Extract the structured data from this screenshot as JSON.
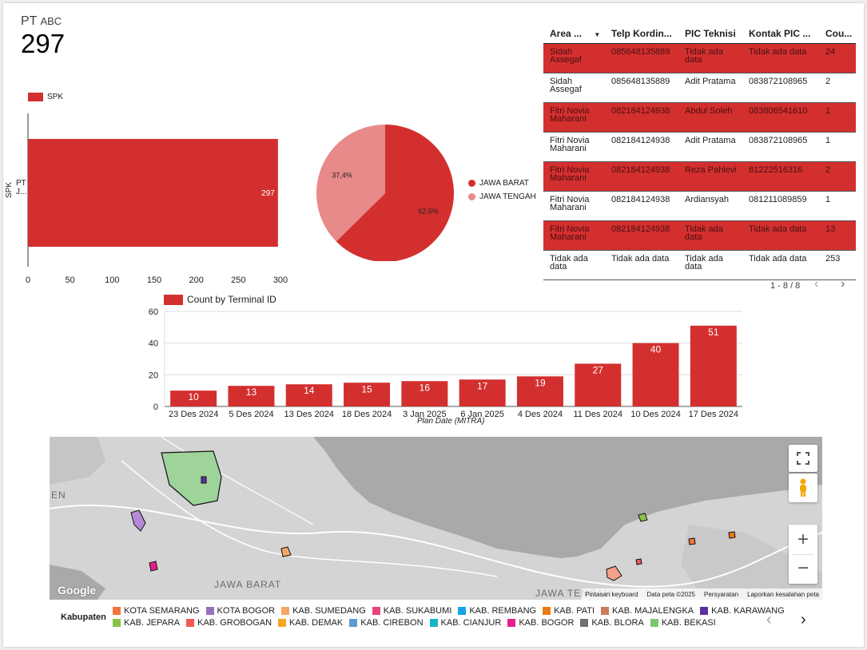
{
  "scorecard": {
    "label_main": "PT",
    "label_small": "ABC",
    "value": "297"
  },
  "spk_chart": {
    "legend": "SPK",
    "yaxis_label": "SPK",
    "category_label": "PT J...",
    "ticks": [
      "0",
      "50",
      "100",
      "150",
      "200",
      "250",
      "300"
    ]
  },
  "pie": {
    "legend": [
      "JAWA BARAT",
      "JAWA TENGAH"
    ]
  },
  "table": {
    "headers": [
      "Area ...",
      "Telp Kordin...",
      "PIC Teknisi",
      "Kontak PIC ...",
      "Cou..."
    ],
    "sort_icon": "sort-down-icon",
    "rows": [
      [
        "Sidah Assegaf",
        "085648135889",
        "Tidak ada data",
        "Tidak ada data",
        "24"
      ],
      [
        "Sidah Assegaf",
        "085648135889",
        "Adit Pratama",
        "083872108965",
        "2"
      ],
      [
        "Fitri Novia Maharani",
        "082184124938",
        "Abdul Soleh",
        "083806541610",
        "1"
      ],
      [
        "Fitri Novia Maharani",
        "082184124938",
        "Adit Pratama",
        "083872108965",
        "1"
      ],
      [
        "Fitri Novia Maharani",
        "082184124938",
        "Reza Pahlevi",
        "81222516316",
        "2"
      ],
      [
        "Fitri Novia Maharani",
        "082184124938",
        "Ardiansyah",
        "081211089859",
        "1"
      ],
      [
        "Fitri Novia Maharani",
        "082184124938",
        "Tidak ada data",
        "Tidak ada data",
        "13"
      ],
      [
        "Tidak ada data",
        "Tidak ada data",
        "Tidak ada data",
        "Tidak ada data",
        "253"
      ]
    ],
    "pager": "1 - 8 / 8",
    "prev": "‹",
    "next": "›"
  },
  "bar_chart": {
    "legend": "Count by Terminal ID",
    "xlabel": "Plan Date (MITRA)",
    "yticks": [
      "60",
      "40",
      "20",
      "0"
    ]
  },
  "chart_data": [
    {
      "type": "bar",
      "orientation": "horizontal",
      "categories": [
        "PT J..."
      ],
      "series": [
        {
          "name": "SPK",
          "values": [
            297
          ]
        }
      ],
      "ylabel": "SPK",
      "xlim": [
        0,
        300
      ],
      "data_labels": [
        "297"
      ]
    },
    {
      "type": "pie",
      "categories": [
        "JAWA BARAT",
        "JAWA TENGAH"
      ],
      "values": [
        62.6,
        37.4
      ],
      "labels": [
        "62,6%",
        "37,4%"
      ]
    },
    {
      "type": "bar",
      "categories": [
        "23 Des 2024",
        "5 Des 2024",
        "13 Des 2024",
        "18 Des 2024",
        "3 Jan 2025",
        "6 Jan 2025",
        "4 Des 2024",
        "11 Des 2024",
        "10 Des 2024",
        "17 Des 2024"
      ],
      "series": [
        {
          "name": "Count by Terminal ID",
          "values": [
            10,
            13,
            14,
            15,
            16,
            17,
            19,
            27,
            40,
            51
          ]
        }
      ],
      "xlabel": "Plan Date (MITRA)",
      "ylim": [
        0,
        60
      ],
      "grid": true,
      "legend": "top-left"
    }
  ],
  "colors": {
    "primary_red": "#d32f2f",
    "light_red": "#e88a8a",
    "map_land": "#d4d4d4",
    "map_sea": "#a9a9a9"
  },
  "map": {
    "labels": [
      "EN",
      "JAWA BARAT",
      "JAWA TENGAH"
    ],
    "google_logo": "Google",
    "attribution": [
      "Pintasan keyboard",
      "Data peta ©2025",
      "Persyaratan",
      "Laporkan kesalahan peta"
    ],
    "icons": [
      "fullscreen-icon",
      "pegman-icon"
    ],
    "zoom_in": "+",
    "zoom_out": "−"
  },
  "kabupaten": {
    "title": "Kabupaten",
    "items_row1": [
      {
        "label": "KOTA SEMARANG",
        "color": "#f4753b"
      },
      {
        "label": "KOTA BOGOR",
        "color": "#9b6fbf"
      },
      {
        "label": "KAB. SUMEDANG",
        "color": "#f5a663"
      },
      {
        "label": "KAB. SUKABUMI",
        "color": "#e8457c"
      },
      {
        "label": "KAB. REMBANG",
        "color": "#1aa3e8"
      },
      {
        "label": "KAB. PATI",
        "color": "#f07a12"
      },
      {
        "label": "KAB. MAJALENGKA",
        "color": "#cc7a5a"
      },
      {
        "label": "KAB. KARAWANG",
        "color": "#5a2ea6"
      }
    ],
    "items_row2": [
      {
        "label": "KAB. JEPARA",
        "color": "#8bc34a"
      },
      {
        "label": "KAB. GROBOGAN",
        "color": "#ef5b5b"
      },
      {
        "label": "KAB. DEMAK",
        "color": "#f5a623"
      },
      {
        "label": "KAB. CIREBON",
        "color": "#5b9bd5"
      },
      {
        "label": "KAB. CIANJUR",
        "color": "#17b5c9"
      },
      {
        "label": "KAB. BOGOR",
        "color": "#e91e8c"
      },
      {
        "label": "KAB. BLORA",
        "color": "#707070"
      },
      {
        "label": "KAB. BEKASI",
        "color": "#7cc576"
      }
    ],
    "prev": "‹",
    "next": "›"
  }
}
